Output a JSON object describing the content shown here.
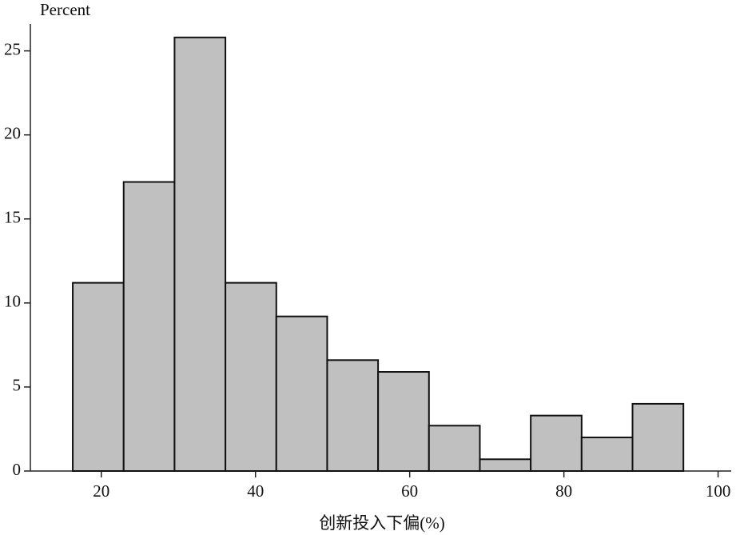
{
  "chart_data": {
    "type": "histogram",
    "ylabel": "Percent",
    "xlabel": "创新投入下偏(%)",
    "bins": [
      16.3,
      22.9,
      29.5,
      36.1,
      42.7,
      49.3,
      55.9,
      62.5,
      69.1,
      75.7,
      82.3,
      88.9,
      95.5
    ],
    "values": [
      11.2,
      17.2,
      25.8,
      11.2,
      9.2,
      6.6,
      5.9,
      2.7,
      0.7,
      3.3,
      2.0,
      4.0
    ],
    "color": "#c0c0c0",
    "xlim": [
      10.8,
      101.7
    ],
    "xticks": [
      20,
      40,
      60,
      80,
      100
    ],
    "ylim": [
      0,
      26.6
    ],
    "yticks": [
      0,
      5,
      10,
      15,
      20,
      25
    ]
  }
}
